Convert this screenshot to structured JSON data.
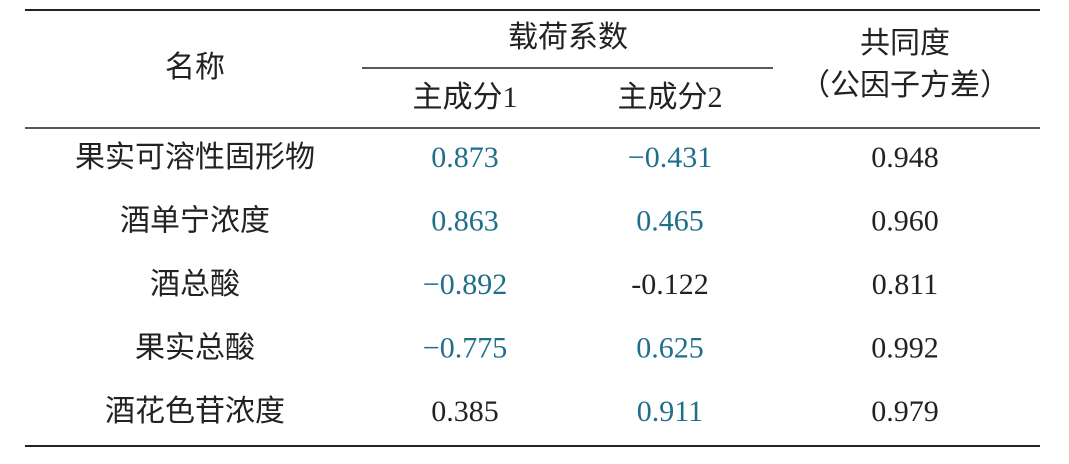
{
  "table": {
    "header": {
      "name": "名称",
      "group": "载荷系数",
      "sub": [
        "主成分1",
        "主成分2"
      ],
      "common": "共同度",
      "common_note": "（公因子方差）"
    },
    "rows": [
      {
        "name": "果实可溶性固形物",
        "values": [
          "0.873",
          "−0.431",
          "0.948"
        ],
        "colors": [
          "#1f6f8b",
          "#1f6f8b",
          "#222222"
        ]
      },
      {
        "name": "酒单宁浓度",
        "values": [
          "0.863",
          "0.465",
          "0.960"
        ],
        "colors": [
          "#1f6f8b",
          "#1f6f8b",
          "#222222"
        ]
      },
      {
        "name": "酒总酸",
        "values": [
          "−0.892",
          "-0.122",
          "0.811"
        ],
        "colors": [
          "#1f6f8b",
          "#222222",
          "#222222"
        ]
      },
      {
        "name": "果实总酸",
        "values": [
          "−0.775",
          "0.625",
          "0.992"
        ],
        "colors": [
          "#1f6f8b",
          "#1f6f8b",
          "#222222"
        ]
      },
      {
        "name": "酒花色苷浓度",
        "values": [
          "0.385",
          "0.911",
          "0.979"
        ],
        "colors": [
          "#222222",
          "#1f6f8b",
          "#222222"
        ]
      }
    ]
  }
}
